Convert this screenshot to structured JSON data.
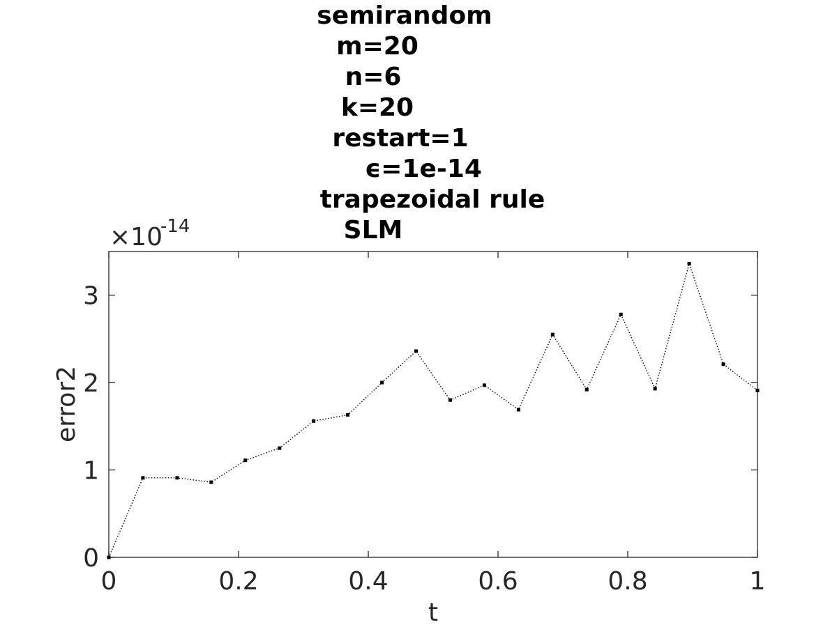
{
  "chart_data": {
    "type": "line",
    "title_lines": [
      "semirandom",
      "m=20",
      "n=6",
      "k=20",
      "restart=1",
      "ϵ=1e-14",
      "trapezoidal rule",
      "SLM"
    ],
    "xlabel": "t",
    "ylabel": "error2",
    "xlim": [
      0,
      1
    ],
    "ylim": [
      0,
      3.5
    ],
    "x_ticks": [
      0,
      0.2,
      0.4,
      0.6,
      0.8,
      1
    ],
    "x_tick_labels": [
      "0",
      "0.2",
      "0.4",
      "0.6",
      "0.8",
      "1"
    ],
    "y_ticks": [
      0,
      1,
      2,
      3
    ],
    "y_tick_labels": [
      "0",
      "1",
      "2",
      "3"
    ],
    "y_exponent_base": "×10",
    "y_exponent": "-14",
    "grid": false,
    "line_style": "dotted",
    "marker": "point",
    "color": "#000000",
    "series": [
      {
        "x": [
          0,
          0.0526,
          0.1053,
          0.1579,
          0.2105,
          0.2632,
          0.3158,
          0.3684,
          0.4211,
          0.4737,
          0.5263,
          0.5789,
          0.6316,
          0.6842,
          0.7368,
          0.7895,
          0.8421,
          0.8947,
          0.9474,
          1.0
        ],
        "values": [
          0,
          0.91,
          0.91,
          0.86,
          1.11,
          1.25,
          1.56,
          1.63,
          2.0,
          2.36,
          1.8,
          1.97,
          1.69,
          2.55,
          1.92,
          2.78,
          1.93,
          3.36,
          2.21,
          1.91
        ]
      }
    ]
  }
}
